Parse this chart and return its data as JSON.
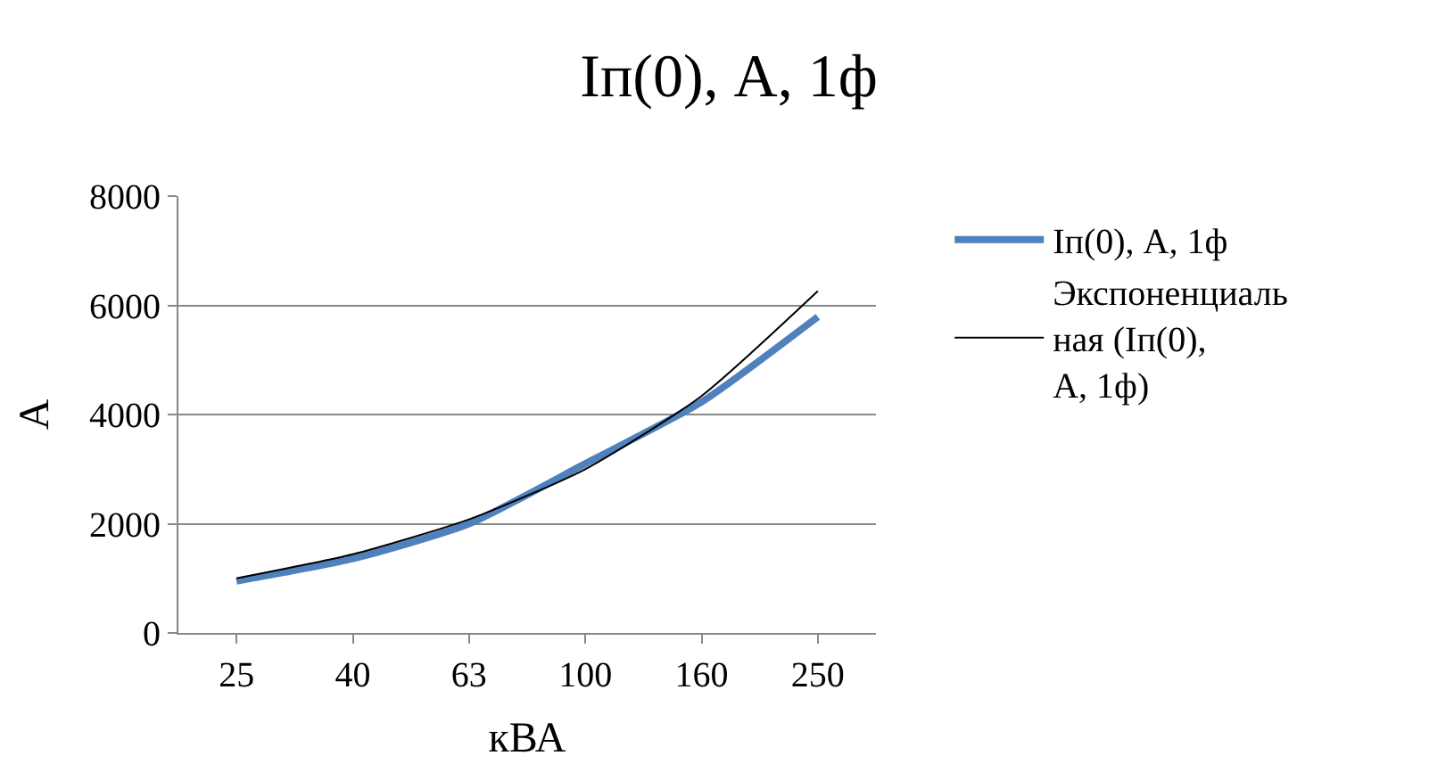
{
  "chart_data": {
    "type": "line",
    "title": "Iп(0), А, 1ф",
    "xlabel": "кВА",
    "ylabel": "А",
    "categories": [
      "25",
      "40",
      "63",
      "100",
      "160",
      "250"
    ],
    "series": [
      {
        "name": "Iп(0), А, 1ф",
        "color": "#4f81bd",
        "values": [
          950,
          1360,
          2000,
          3100,
          4230,
          5790
        ]
      },
      {
        "name": "Экспоненциальная (Iп(0), А, 1ф)",
        "color": "#000000",
        "values": [
          1000,
          1440,
          2080,
          3000,
          4340,
          6260
        ]
      }
    ],
    "ylim": [
      0,
      8000
    ],
    "yticks": [
      0,
      2000,
      4000,
      6000,
      8000
    ],
    "grid": "y",
    "legend": "right",
    "marker": "none",
    "line_style": "solid"
  }
}
